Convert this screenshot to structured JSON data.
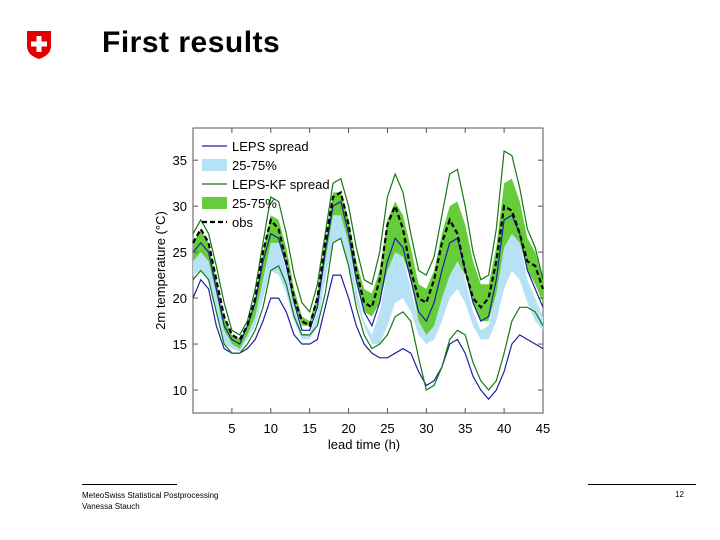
{
  "header": {
    "title": "First results"
  },
  "footer": {
    "organization": "MeteoSwiss Statistical Postprocessing",
    "author": "Vanessa Stauch",
    "page_number": "12"
  },
  "colors": {
    "leps_line": "#1f1f9e",
    "leps_band": "#b7e1f5",
    "kf_line": "#137a13",
    "kf_band": "#66cc3a",
    "obs": "#000000"
  },
  "chart_data": {
    "type": "line",
    "xlabel": "lead time (h)",
    "ylabel": "2m temperature (°C)",
    "xlim": [
      0,
      45
    ],
    "ylim": [
      7.5,
      38.5
    ],
    "xticks": [
      5,
      10,
      15,
      20,
      25,
      30,
      35,
      40,
      45
    ],
    "yticks": [
      10,
      15,
      20,
      25,
      30,
      35
    ],
    "legend_position": "top-left",
    "legend": [
      {
        "label": "LEPS spread",
        "style": "line",
        "color": "#1f1f9e"
      },
      {
        "label": "25-75%",
        "style": "patch",
        "color": "#b7e1f5"
      },
      {
        "label": "LEPS-KF spread",
        "style": "line",
        "color": "#137a13"
      },
      {
        "label": "25-75%",
        "style": "patch",
        "color": "#66cc3a"
      },
      {
        "label": "obs",
        "style": "dashed",
        "color": "#000000"
      }
    ],
    "x": [
      0,
      1,
      2,
      3,
      4,
      5,
      6,
      7,
      8,
      9,
      10,
      11,
      12,
      13,
      14,
      15,
      16,
      17,
      18,
      19,
      20,
      21,
      22,
      23,
      24,
      25,
      26,
      27,
      28,
      29,
      30,
      31,
      32,
      33,
      34,
      35,
      36,
      37,
      38,
      39,
      40,
      41,
      42,
      43,
      44,
      45
    ],
    "series": [
      {
        "name": "obs",
        "values": [
          26,
          27.5,
          26,
          22,
          18,
          16,
          15.5,
          17,
          20,
          25,
          28.5,
          27.5,
          24,
          20,
          17.5,
          17,
          20,
          26,
          31,
          31.5,
          28,
          23,
          19.5,
          19,
          22,
          28,
          30,
          27.5,
          23,
          20,
          19.5,
          22,
          26,
          28.5,
          27,
          23,
          20,
          19,
          20,
          24,
          30,
          29.5,
          27,
          24,
          23.5,
          21
        ]
      },
      {
        "name": "LEPS spread max",
        "values": [
          25,
          26,
          25,
          21,
          17,
          15.5,
          15,
          17,
          19.5,
          24,
          27,
          26.5,
          23.5,
          19.5,
          16.5,
          16.5,
          19,
          25,
          30,
          30.5,
          27,
          22,
          18.5,
          17,
          19.5,
          24,
          26.5,
          25.5,
          22,
          18.5,
          17.5,
          19.5,
          23,
          26,
          26.5,
          23,
          19.5,
          17.5,
          18,
          22,
          28.5,
          29,
          27,
          23,
          21,
          19
        ]
      },
      {
        "name": "LEPS 75%",
        "values": [
          24.5,
          25.5,
          24.5,
          20.5,
          16.5,
          15,
          14.8,
          16.5,
          19,
          23.5,
          26.5,
          26,
          23,
          19,
          16.2,
          16,
          18.5,
          24.5,
          29,
          29.5,
          26,
          21,
          17.5,
          16,
          18.5,
          23,
          25.5,
          24.5,
          21,
          17.5,
          16.5,
          18.5,
          22,
          25,
          25.5,
          22,
          18.5,
          16.5,
          17,
          21,
          27.5,
          28,
          26,
          22,
          20,
          18
        ]
      },
      {
        "name": "LEPS 25%",
        "values": [
          22.5,
          23,
          22,
          18.5,
          15,
          14.5,
          14.2,
          15.5,
          17,
          20,
          23,
          22.5,
          20.5,
          17.5,
          15.5,
          15.5,
          17,
          22,
          26,
          26.5,
          23.5,
          19.5,
          17,
          15,
          15,
          17,
          19.5,
          20,
          18.5,
          16,
          15,
          15.5,
          17.5,
          20,
          21,
          19.5,
          17,
          15.5,
          15.5,
          17.5,
          21,
          23,
          22,
          19.5,
          17.5,
          16.5
        ]
      },
      {
        "name": "LEPS spread min",
        "values": [
          20,
          22,
          21,
          17,
          14.5,
          14,
          14,
          14.5,
          15.5,
          17.5,
          20,
          20,
          18.5,
          16,
          15,
          15,
          15.5,
          19,
          22.5,
          22.5,
          20,
          17,
          15,
          14,
          13.5,
          13.5,
          14,
          14.5,
          14,
          12,
          10.5,
          11,
          12.5,
          15,
          15.5,
          14,
          11.5,
          10,
          9,
          10,
          12,
          15,
          16,
          15.5,
          15,
          14.5
        ]
      },
      {
        "name": "LEPS-KF spread max",
        "values": [
          27,
          28.5,
          27,
          23.5,
          19.5,
          16.5,
          16,
          17.5,
          21,
          26,
          31,
          30.5,
          27,
          22.5,
          19.5,
          18.5,
          21.5,
          27,
          32.5,
          33,
          30,
          25.5,
          22,
          21.5,
          25,
          31,
          33.5,
          31.5,
          27,
          23,
          22.5,
          24.5,
          29,
          33.5,
          34,
          30,
          25,
          22,
          22.5,
          27.5,
          36,
          35.5,
          32,
          27.5,
          25.5,
          22
        ]
      },
      {
        "name": "LEPS-KF 75%",
        "values": [
          26,
          27.5,
          26,
          22,
          18,
          16,
          15.5,
          17,
          20,
          25,
          29,
          28.5,
          25.5,
          21,
          18,
          17.5,
          20.5,
          26,
          31.5,
          31.5,
          28.5,
          24,
          21,
          20.5,
          23,
          28.5,
          30.5,
          29,
          25.5,
          21.5,
          21,
          23,
          27,
          30,
          30.5,
          28,
          24,
          21.5,
          21.5,
          25.5,
          32.5,
          33,
          30.5,
          26.5,
          25,
          22
        ]
      },
      {
        "name": "LEPS-KF 25%",
        "values": [
          24,
          25,
          24,
          20.5,
          16.5,
          15,
          14.5,
          16,
          18,
          22,
          26,
          26,
          23.5,
          19.5,
          17,
          17,
          19,
          24,
          29,
          29,
          26,
          21.5,
          18.5,
          18,
          19.5,
          23,
          25,
          24.5,
          22,
          17.5,
          16,
          17,
          20,
          22.5,
          24,
          22.5,
          19.5,
          17.5,
          17.5,
          20.5,
          25.5,
          27,
          26,
          23,
          21.5,
          19.5
        ]
      },
      {
        "name": "LEPS-KF spread min",
        "values": [
          22,
          23,
          22,
          18.5,
          15,
          14,
          14,
          15,
          16.5,
          19,
          23,
          23.5,
          21.5,
          18,
          16,
          16,
          17,
          20.5,
          26,
          26.5,
          23.5,
          19,
          16,
          14.5,
          15,
          16,
          18,
          18.5,
          17.5,
          13.5,
          10,
          10.5,
          12.5,
          15.5,
          16.5,
          16,
          13,
          11,
          10,
          11,
          14,
          17.5,
          19,
          19,
          18.5,
          17
        ]
      }
    ]
  }
}
